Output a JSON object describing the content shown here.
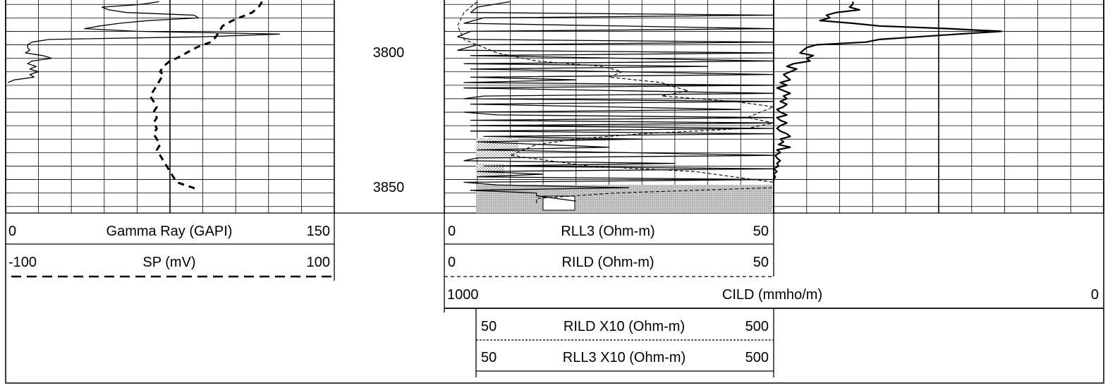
{
  "chart_data": {
    "type": "line",
    "depth_axis": {
      "ticks": [
        "3800",
        "3850"
      ],
      "range": [
        3781,
        3859
      ]
    },
    "tracks": [
      {
        "name": "gamma-sp",
        "series": [
          {
            "name": "Gamma Ray (GAPI)",
            "min": "0",
            "max": "150",
            "style": "solid",
            "points": [
              [
                3781,
                70
              ],
              [
                3782,
                62
              ],
              [
                3783,
                44
              ],
              [
                3784,
                47
              ],
              [
                3785,
                55
              ],
              [
                3786,
                86
              ],
              [
                3787,
                88
              ],
              [
                3788,
                65
              ],
              [
                3789,
                52
              ],
              [
                3790,
                43
              ],
              [
                3791,
                36
              ],
              [
                3792,
                60
              ],
              [
                3793,
                125
              ],
              [
                3794,
                90
              ],
              [
                3795,
                20
              ],
              [
                3796,
                12
              ],
              [
                3797,
                10
              ],
              [
                3798,
                10
              ],
              [
                3799,
                11
              ],
              [
                3800,
                9
              ],
              [
                3801,
                17
              ],
              [
                3802,
                21
              ],
              [
                3803,
                12
              ],
              [
                3804,
                10
              ],
              [
                3805,
                14
              ],
              [
                3806,
                11
              ],
              [
                3807,
                15
              ],
              [
                3808,
                11
              ],
              [
                3809,
                13
              ],
              [
                3810,
                4
              ],
              [
                3811,
                1
              ]
            ]
          },
          {
            "name": "SP (mV)",
            "min": "-100",
            "max": "100",
            "style": "dashed",
            "points": [
              [
                3781,
                56
              ],
              [
                3783,
                54
              ],
              [
                3785,
                50
              ],
              [
                3786,
                46
              ],
              [
                3788,
                38
              ],
              [
                3790,
                32
              ],
              [
                3792,
                30
              ],
              [
                3794,
                28
              ],
              [
                3796,
                25
              ],
              [
                3797,
                20
              ],
              [
                3798,
                16
              ],
              [
                3800,
                10
              ],
              [
                3802,
                4
              ],
              [
                3803,
                0
              ],
              [
                3805,
                -4
              ],
              [
                3807,
                -6
              ],
              [
                3808,
                -4
              ],
              [
                3810,
                -6
              ],
              [
                3812,
                -8
              ],
              [
                3814,
                -10
              ],
              [
                3816,
                -12
              ],
              [
                3818,
                -10
              ],
              [
                3820,
                -8
              ],
              [
                3822,
                -10
              ],
              [
                3824,
                -8
              ],
              [
                3826,
                -10
              ],
              [
                3828,
                -8
              ],
              [
                3830,
                -10
              ],
              [
                3832,
                -8
              ],
              [
                3834,
                -6
              ],
              [
                3836,
                -8
              ],
              [
                3838,
                -6
              ],
              [
                3840,
                -4
              ],
              [
                3842,
                -2
              ],
              [
                3844,
                0
              ],
              [
                3846,
                2
              ],
              [
                3848,
                4
              ],
              [
                3850,
                14
              ],
              [
                3851,
                17
              ]
            ]
          }
        ]
      },
      {
        "name": "resistivity",
        "series": [
          {
            "name": "RLL3 (Ohm-m)",
            "min": "0",
            "max": "50",
            "style": "solid",
            "points": [
              [
                3781,
                10
              ],
              [
                3783,
                5
              ],
              [
                3785,
                4
              ],
              [
                3786,
                50
              ],
              [
                3787,
                6
              ],
              [
                3789,
                3
              ],
              [
                3791,
                50
              ],
              [
                3792,
                4
              ],
              [
                3794,
                2
              ],
              [
                3795,
                4
              ],
              [
                3796,
                50
              ],
              [
                3797,
                5
              ],
              [
                3799,
                2
              ],
              [
                3800,
                50
              ],
              [
                3801,
                4
              ],
              [
                3803,
                50
              ],
              [
                3804,
                3
              ],
              [
                3805,
                40
              ],
              [
                3806,
                4
              ],
              [
                3808,
                50
              ],
              [
                3809,
                4
              ],
              [
                3810,
                20
              ],
              [
                3811,
                3
              ],
              [
                3812,
                50
              ],
              [
                3813,
                3
              ],
              [
                3815,
                50
              ],
              [
                3816,
                6
              ],
              [
                3817,
                3
              ],
              [
                3818,
                50
              ],
              [
                3819,
                4
              ],
              [
                3821,
                45
              ],
              [
                3822,
                3
              ],
              [
                3823,
                8
              ],
              [
                3824,
                50
              ],
              [
                3825,
                4
              ],
              [
                3826,
                50
              ],
              [
                3827,
                4
              ],
              [
                3828,
                50
              ],
              [
                3829,
                4
              ],
              [
                3830,
                50
              ],
              [
                3831,
                6
              ],
              [
                3832,
                30
              ],
              [
                3833,
                5
              ],
              [
                3835,
                25
              ],
              [
                3836,
                5
              ],
              [
                3838,
                50
              ],
              [
                3839,
                5
              ],
              [
                3840,
                3
              ],
              [
                3841,
                35
              ],
              [
                3842,
                6
              ],
              [
                3843,
                50
              ],
              [
                3844,
                5
              ],
              [
                3845,
                15
              ],
              [
                3846,
                5
              ],
              [
                3847,
                50
              ],
              [
                3848,
                3
              ],
              [
                3849,
                8
              ],
              [
                3850,
                28
              ],
              [
                3851,
                4
              ],
              [
                3852,
                14
              ],
              [
                3853,
                14
              ],
              [
                3855,
                20
              ]
            ]
          },
          {
            "name": "RILD (Ohm-m)",
            "min": "0",
            "max": "50",
            "style": "dashed",
            "points": [
              [
                3781,
                5
              ],
              [
                3785,
                3
              ],
              [
                3790,
                2
              ],
              [
                3795,
                3
              ],
              [
                3800,
                8
              ],
              [
                3803,
                14
              ],
              [
                3805,
                24
              ],
              [
                3807,
                27
              ],
              [
                3809,
                25
              ],
              [
                3811,
                33
              ],
              [
                3812,
                34
              ],
              [
                3814,
                37
              ],
              [
                3816,
                33
              ],
              [
                3818,
                44
              ],
              [
                3820,
                50
              ],
              [
                3822,
                48
              ],
              [
                3824,
                46
              ],
              [
                3826,
                50
              ],
              [
                3828,
                46
              ],
              [
                3830,
                30
              ],
              [
                3832,
                20
              ],
              [
                3834,
                14
              ],
              [
                3836,
                12
              ],
              [
                3838,
                10
              ],
              [
                3840,
                16
              ],
              [
                3842,
                22
              ],
              [
                3844,
                38
              ],
              [
                3846,
                44
              ],
              [
                3848,
                50
              ],
              [
                3850,
                50
              ],
              [
                3852,
                26
              ],
              [
                3854,
                14
              ],
              [
                3856,
                14
              ]
            ]
          }
        ],
        "scales": [
          {
            "name": "CILD (mmho/m)",
            "min": "1000",
            "max": "0"
          },
          {
            "name": "RILD X10 (Ohm-m)",
            "min": "50",
            "max": "500"
          },
          {
            "name": "RLL3 X10 (Ohm-m)",
            "min": "50",
            "max": "500"
          }
        ]
      },
      {
        "name": "conductivity",
        "series": [
          {
            "name": "CILD (mmho/m)",
            "min": "1000",
            "max": "0",
            "style": "solid",
            "points": [
              [
                3781,
                760
              ],
              [
                3782,
                760
              ],
              [
                3783,
                770
              ],
              [
                3784,
                740
              ],
              [
                3785,
                810
              ],
              [
                3786,
                840
              ],
              [
                3787,
                830
              ],
              [
                3788,
                860
              ],
              [
                3789,
                760
              ],
              [
                3790,
                680
              ],
              [
                3791,
                470
              ],
              [
                3792,
                310
              ],
              [
                3793,
                440
              ],
              [
                3795,
                680
              ],
              [
                3796,
                720
              ],
              [
                3797,
                870
              ],
              [
                3798,
                900
              ],
              [
                3799,
                910
              ],
              [
                3800,
                920
              ],
              [
                3801,
                880
              ],
              [
                3802,
                900
              ],
              [
                3803,
                890
              ],
              [
                3804,
                940
              ],
              [
                3805,
                960
              ],
              [
                3806,
                930
              ],
              [
                3807,
                950
              ],
              [
                3808,
                970
              ],
              [
                3809,
                960
              ],
              [
                3810,
                950
              ],
              [
                3811,
                980
              ],
              [
                3812,
                960
              ],
              [
                3813,
                990
              ],
              [
                3814,
                970
              ],
              [
                3815,
                950
              ],
              [
                3816,
                970
              ],
              [
                3817,
                960
              ],
              [
                3818,
                980
              ],
              [
                3819,
                960
              ],
              [
                3820,
                970
              ],
              [
                3821,
                990
              ],
              [
                3822,
                980
              ],
              [
                3823,
                960
              ],
              [
                3824,
                990
              ],
              [
                3825,
                980
              ],
              [
                3826,
                960
              ],
              [
                3827,
                980
              ],
              [
                3828,
                990
              ],
              [
                3829,
                980
              ],
              [
                3830,
                960
              ],
              [
                3831,
                950
              ],
              [
                3832,
                980
              ],
              [
                3833,
                970
              ],
              [
                3834,
                985
              ],
              [
                3835,
                950
              ],
              [
                3836,
                990
              ],
              [
                3837,
                980
              ],
              [
                3838,
                995
              ],
              [
                3839,
                990
              ],
              [
                3840,
                980
              ],
              [
                3841,
                990
              ],
              [
                3842,
                985
              ],
              [
                3843,
                1000
              ],
              [
                3844,
                990
              ],
              [
                3845,
                1000
              ],
              [
                3846,
                995
              ],
              [
                3847,
                1000
              ],
              [
                3848,
                1000
              ]
            ]
          }
        ]
      }
    ],
    "headers": {
      "gamma": {
        "min": "0",
        "title": "Gamma Ray (GAPI)",
        "max": "150"
      },
      "sp": {
        "min": "-100",
        "title": "SP (mV)",
        "max": "100"
      },
      "rll3": {
        "min": "0",
        "title": "RLL3 (Ohm-m)",
        "max": "50"
      },
      "rild": {
        "min": "0",
        "title": "RILD (Ohm-m)",
        "max": "50"
      },
      "cild": {
        "min": "1000",
        "title": "CILD (mmho/m)",
        "max": "0"
      },
      "rild_x10": {
        "min": "50",
        "title": "RILD X10 (Ohm-m)",
        "max": "500"
      },
      "rll3_x10": {
        "min": "50",
        "title": "RLL3 X10 (Ohm-m)",
        "max": "500"
      }
    },
    "grid": true
  }
}
